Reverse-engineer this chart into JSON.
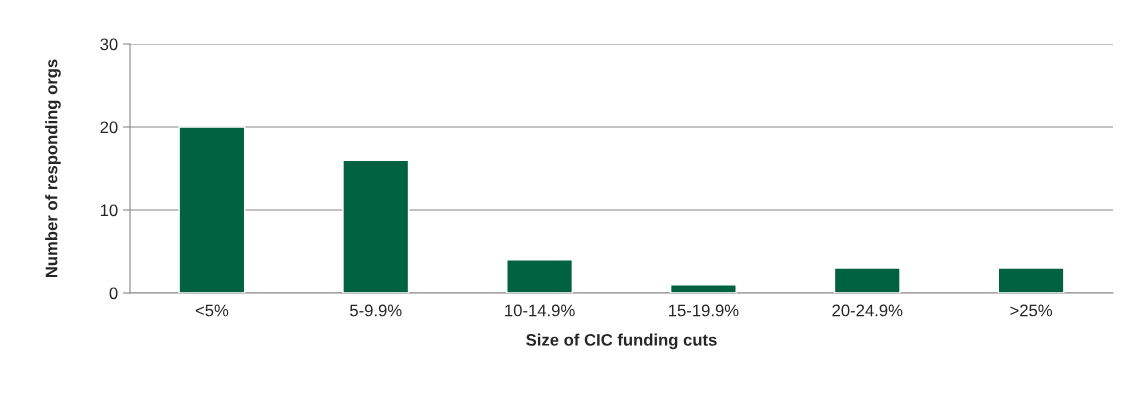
{
  "chart_data": {
    "type": "bar",
    "xlabel": "Size of CIC funding cuts",
    "ylabel": "Number of responding orgs",
    "categories": [
      "<5%",
      "5-9.9%",
      "10-14.9%",
      "15-19.9%",
      "20-24.9%",
      ">25%"
    ],
    "values": [
      20,
      16,
      4,
      1,
      3,
      3
    ],
    "color": "#006241",
    "ylim": [
      0,
      30
    ],
    "yticks": [
      0,
      10,
      20,
      30
    ],
    "grid": "y",
    "legend": false
  }
}
